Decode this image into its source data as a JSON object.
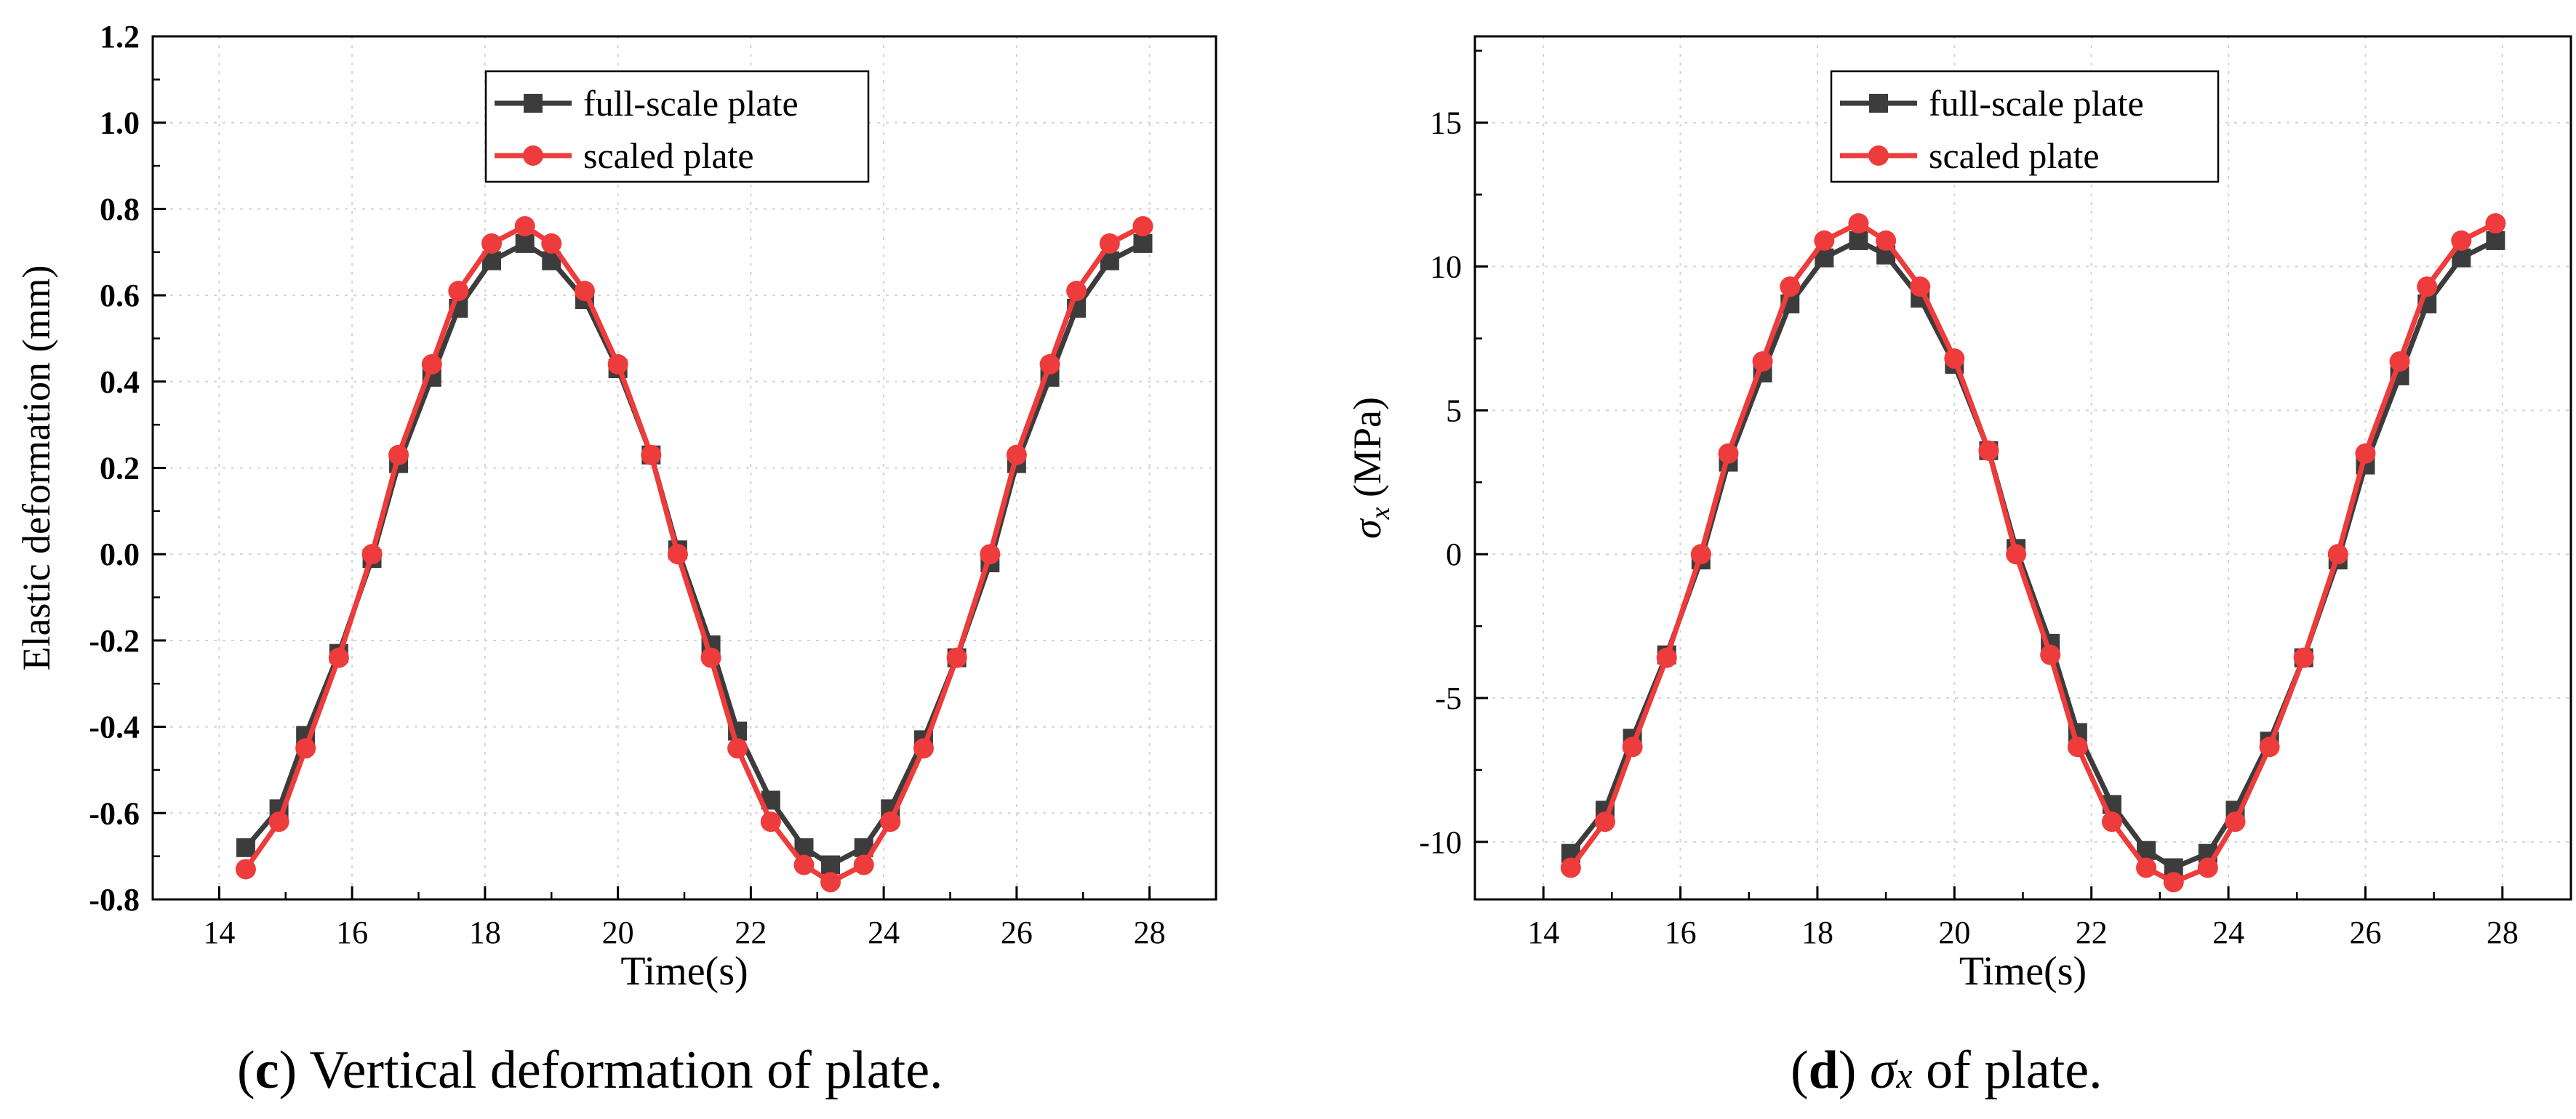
{
  "chart_data": [
    {
      "type": "line",
      "panel": "c",
      "title": "",
      "xlabel": "Time(s)",
      "ylabel": "Elastic deformation (mm)",
      "xlim": [
        13,
        29
      ],
      "ylim": [
        -0.8,
        1.2
      ],
      "xticks": [
        14,
        16,
        18,
        20,
        22,
        24,
        26,
        28
      ],
      "yticks": [
        -0.8,
        -0.6,
        -0.4,
        -0.2,
        0.0,
        0.2,
        0.4,
        0.6,
        0.8,
        1.0,
        1.2
      ],
      "ytick_labels": [
        "-0.8",
        "-0.6",
        "-0.4",
        "-0.2",
        "0.0",
        "0.2",
        "0.4",
        "0.6",
        "0.8",
        "1.0",
        "1.2"
      ],
      "xtick_labels": [
        "14",
        "16",
        "18",
        "20",
        "22",
        "24",
        "26",
        "28"
      ],
      "grid": true,
      "legend": "top-center",
      "x": [
        14.4,
        14.9,
        15.3,
        15.8,
        16.3,
        16.7,
        17.2,
        17.6,
        18.1,
        18.6,
        19.0,
        19.5,
        20.0,
        20.5,
        20.9,
        21.4,
        21.8,
        22.3,
        22.8,
        23.2,
        23.7,
        24.1,
        24.6,
        25.1,
        25.6,
        26.0,
        26.5,
        26.9,
        27.4,
        27.9
      ],
      "series": [
        {
          "name": "full-scale plate",
          "color": "#3c3c3c",
          "marker": "square",
          "values": [
            -0.68,
            -0.59,
            -0.42,
            -0.23,
            -0.01,
            0.21,
            0.41,
            0.57,
            0.68,
            0.72,
            0.68,
            0.59,
            0.43,
            0.23,
            0.01,
            -0.21,
            -0.41,
            -0.57,
            -0.68,
            -0.72,
            -0.68,
            -0.59,
            -0.43,
            -0.24,
            -0.02,
            0.21,
            0.41,
            0.57,
            0.68,
            0.72
          ]
        },
        {
          "name": "scaled plate",
          "color": "#ee3b3b",
          "marker": "circle",
          "values": [
            -0.73,
            -0.62,
            -0.45,
            -0.24,
            0.0,
            0.23,
            0.44,
            0.61,
            0.72,
            0.76,
            0.72,
            0.61,
            0.44,
            0.23,
            0.0,
            -0.24,
            -0.45,
            -0.62,
            -0.72,
            -0.76,
            -0.72,
            -0.62,
            -0.45,
            -0.24,
            0.0,
            0.23,
            0.44,
            0.61,
            0.72,
            0.76
          ]
        }
      ]
    },
    {
      "type": "line",
      "panel": "d",
      "title": "",
      "xlabel": "Time(s)",
      "ylabel_symbol": "σ",
      "ylabel_sub": "x",
      "ylabel_unit": " (MPa)",
      "xlim": [
        13,
        29
      ],
      "ylim": [
        -12,
        18
      ],
      "xticks": [
        14,
        16,
        18,
        20,
        22,
        24,
        26,
        28
      ],
      "yticks": [
        -10,
        -5,
        0,
        5,
        10,
        15
      ],
      "ytick_labels": [
        "-10",
        "-5",
        "0",
        "5",
        "10",
        "15"
      ],
      "xtick_labels": [
        "14",
        "16",
        "18",
        "20",
        "22",
        "24",
        "26",
        "28"
      ],
      "grid": true,
      "legend": "top-center",
      "x": [
        14.4,
        14.9,
        15.3,
        15.8,
        16.3,
        16.7,
        17.2,
        17.6,
        18.1,
        18.6,
        19.0,
        19.5,
        20.0,
        20.5,
        20.9,
        21.4,
        21.8,
        22.3,
        22.8,
        23.2,
        23.7,
        24.1,
        24.6,
        25.1,
        25.6,
        26.0,
        26.5,
        26.9,
        27.4,
        27.9
      ],
      "series": [
        {
          "name": "full-scale plate",
          "color": "#3c3c3c",
          "marker": "square",
          "values": [
            -10.4,
            -8.9,
            -6.4,
            -3.5,
            -0.2,
            3.2,
            6.3,
            8.7,
            10.3,
            10.9,
            10.4,
            8.9,
            6.6,
            3.6,
            0.2,
            -3.1,
            -6.2,
            -8.7,
            -10.3,
            -10.9,
            -10.4,
            -8.9,
            -6.5,
            -3.6,
            -0.2,
            3.1,
            6.2,
            8.7,
            10.3,
            10.9
          ]
        },
        {
          "name": "scaled plate",
          "color": "#ee3b3b",
          "marker": "circle",
          "values": [
            -10.9,
            -9.3,
            -6.7,
            -3.6,
            0.0,
            3.5,
            6.7,
            9.3,
            10.9,
            11.5,
            10.9,
            9.3,
            6.8,
            3.6,
            0.0,
            -3.5,
            -6.7,
            -9.3,
            -10.9,
            -11.4,
            -10.9,
            -9.3,
            -6.7,
            -3.6,
            0.0,
            3.5,
            6.7,
            9.3,
            10.9,
            11.5
          ]
        }
      ]
    }
  ],
  "captions": {
    "c": {
      "letter": "c",
      "text": " Vertical deformation of plate."
    },
    "d": {
      "letter": "d",
      "symbol": "σ",
      "sub": "x",
      "text": " of plate."
    }
  }
}
